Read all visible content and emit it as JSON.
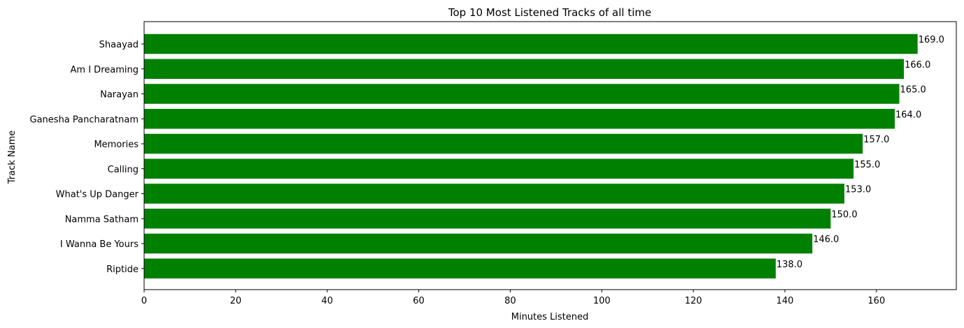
{
  "chart_data": {
    "type": "bar",
    "orientation": "horizontal",
    "title": "Top 10 Most Listened Tracks of all time",
    "xlabel": "Minutes Listened",
    "ylabel": "Track Name",
    "categories": [
      "Shaayad",
      "Am I Dreaming ",
      "Narayan",
      "Ganesha Pancharatnam",
      "Memories",
      "Calling ",
      "What's Up Danger ",
      "Namma Satham ",
      "I Wanna Be Yours",
      "Riptide"
    ],
    "values": [
      169.0,
      166.0,
      165.0,
      164.0,
      157.0,
      155.0,
      153.0,
      150.0,
      146.0,
      138.0
    ],
    "data_labels": [
      "169.0",
      "166.0",
      "165.0",
      "164.0",
      "157.0",
      "155.0",
      "153.0",
      "150.0",
      "146.0",
      "138.0"
    ],
    "x_ticks": [
      "0",
      "20",
      "40",
      "60",
      "80",
      "100",
      "120",
      "140",
      "160"
    ],
    "xlim": [
      0,
      177.45
    ],
    "bar_color": "#008000",
    "grid": false,
    "legend": "none"
  }
}
